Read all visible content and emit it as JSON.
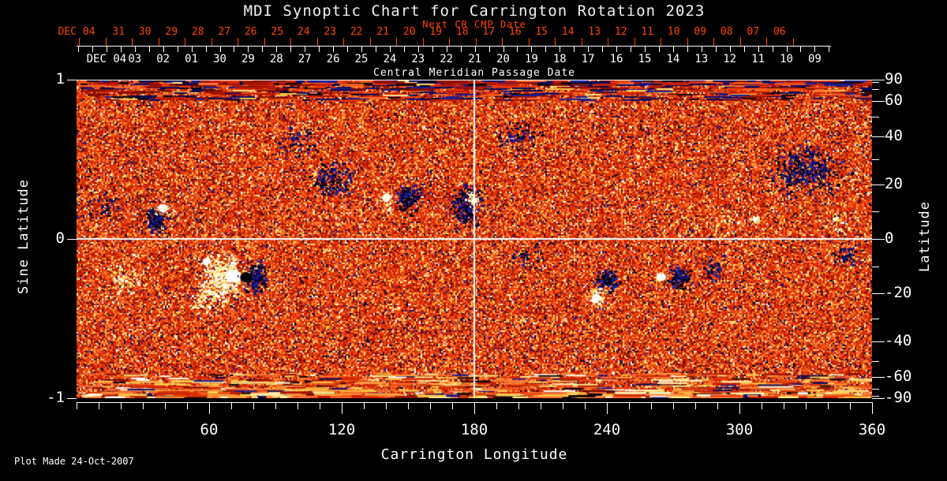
{
  "title": "MDI Synoptic Chart for Carrington Rotation 2023",
  "footer": "Plot Made 24-Oct-2007",
  "colors": {
    "background": "#000000",
    "foreground": "#ffffff",
    "accent_red": "#ff4400",
    "map_base_red": "#dd3300",
    "negative_polarity": "#101070",
    "positive_polarity": "#ffffff"
  },
  "top_axis": {
    "label": "Next CR CMP Date",
    "month_label": "DEC 04",
    "day_labels": [
      "31",
      "30",
      "29",
      "28",
      "27",
      "26",
      "25",
      "24",
      "23",
      "22",
      "21",
      "20",
      "19",
      "18",
      "17",
      "16",
      "15",
      "14",
      "13",
      "12",
      "11",
      "10",
      "09",
      "08",
      "07",
      "06"
    ]
  },
  "cmp_axis": {
    "label": "Central Meridian Passage Date",
    "month_label": "DEC 04",
    "day_labels": [
      "03",
      "02",
      "01",
      "30",
      "29",
      "28",
      "27",
      "26",
      "25",
      "24",
      "23",
      "22",
      "21",
      "20",
      "19",
      "18",
      "17",
      "16",
      "15",
      "14",
      "13",
      "12",
      "11",
      "10",
      "09"
    ]
  },
  "left_axis": {
    "label": "Sine Latitude",
    "tick_labels": [
      "1",
      "0",
      "-1"
    ],
    "tick_values": [
      1,
      0,
      -1
    ]
  },
  "right_axis": {
    "label": "Latitude",
    "tick_labels": [
      "90",
      "60",
      "40",
      "20",
      "0",
      "-20",
      "-40",
      "-60",
      "-90"
    ],
    "tick_values": [
      90,
      60,
      40,
      20,
      0,
      -20,
      -40,
      -60,
      -90
    ],
    "minor_step_deg": 10
  },
  "bottom_axis": {
    "label": "Carrington Longitude",
    "tick_labels": [
      "60",
      "120",
      "180",
      "240",
      "300",
      "360"
    ],
    "tick_values": [
      60,
      120,
      180,
      240,
      300,
      360
    ],
    "minor_step_deg": 10
  },
  "chart_data": {
    "type": "heatmap",
    "title": "MDI Synoptic Chart for Carrington Rotation 2023",
    "xlabel": "Carrington Longitude",
    "xlim": [
      0,
      360
    ],
    "ylabel": "Sine Latitude",
    "ylim": [
      -1,
      1
    ],
    "y2label": "Latitude",
    "y2lim": [
      -90,
      90
    ],
    "grid": {
      "vertical_line_lon": 180,
      "horizontal_line_lat": 0
    },
    "description": "Solar magnetic field synoptic map: red/orange speckled background noise, dark navy/black patches are negative polarity flux, white/yellow patches are positive polarity flux; horizontally smeared noise bands at both poles",
    "active_regions": [
      {
        "lon": 36,
        "lat": 7,
        "dlon": 7,
        "dlat": 8,
        "polarity": "negative",
        "density": "dense"
      },
      {
        "lon": 12,
        "lat": 11,
        "dlon": 12,
        "dlat": 8,
        "polarity": "negative",
        "density": "sparse"
      },
      {
        "lon": 22,
        "lat": -15,
        "dlon": 16,
        "dlat": 13,
        "polarity": "positive",
        "density": "sparse"
      },
      {
        "lon": 66,
        "lat": -14,
        "dlon": 13,
        "dlat": 13,
        "polarity": "positive",
        "density": "dense"
      },
      {
        "lon": 58,
        "lat": -22,
        "dlon": 9,
        "dlat": 8,
        "polarity": "positive",
        "density": "medium"
      },
      {
        "lon": 81,
        "lat": -14,
        "dlon": 8,
        "dlat": 8,
        "polarity": "negative",
        "density": "dense"
      },
      {
        "lon": 115,
        "lat": 22,
        "dlon": 16,
        "dlat": 11,
        "polarity": "negative",
        "density": "medium"
      },
      {
        "lon": 100,
        "lat": 38,
        "dlon": 14,
        "dlat": 11,
        "polarity": "negative",
        "density": "sparse"
      },
      {
        "lon": 150,
        "lat": 15,
        "dlon": 8,
        "dlat": 8,
        "polarity": "negative",
        "density": "dense"
      },
      {
        "lon": 140,
        "lat": 11,
        "dlon": 5,
        "dlat": 6,
        "polarity": "positive",
        "density": "sparse"
      },
      {
        "lon": 176,
        "lat": 12,
        "dlon": 10,
        "dlat": 11,
        "polarity": "negative",
        "density": "dense"
      },
      {
        "lon": 178,
        "lat": 15,
        "dlon": 4,
        "dlat": 5,
        "polarity": "positive",
        "density": "medium"
      },
      {
        "lon": 203,
        "lat": -6,
        "dlon": 12,
        "dlat": 7,
        "polarity": "negative",
        "density": "sparse"
      },
      {
        "lon": 200,
        "lat": 40,
        "dlon": 18,
        "dlat": 12,
        "polarity": "negative",
        "density": "sparse"
      },
      {
        "lon": 240,
        "lat": -15,
        "dlon": 8,
        "dlat": 7,
        "polarity": "negative",
        "density": "dense"
      },
      {
        "lon": 236,
        "lat": -20,
        "dlon": 6,
        "dlat": 6,
        "polarity": "positive",
        "density": "medium"
      },
      {
        "lon": 273,
        "lat": -14,
        "dlon": 8,
        "dlat": 7,
        "polarity": "negative",
        "density": "dense"
      },
      {
        "lon": 288,
        "lat": -11,
        "dlon": 8,
        "dlat": 7,
        "polarity": "negative",
        "density": "medium"
      },
      {
        "lon": 330,
        "lat": 26,
        "dlon": 24,
        "dlat": 16,
        "polarity": "negative",
        "density": "medium"
      },
      {
        "lon": 293,
        "lat": 5,
        "dlon": 9,
        "dlat": 6,
        "polarity": "positive",
        "density": "sparse"
      },
      {
        "lon": 345,
        "lat": 6,
        "dlon": 11,
        "dlat": 6,
        "polarity": "positive",
        "density": "sparse"
      },
      {
        "lon": 348,
        "lat": -6,
        "dlon": 9,
        "dlat": 6,
        "polarity": "negative",
        "density": "medium"
      }
    ],
    "bright_cores": [
      {
        "lon": 39,
        "lat": 11,
        "r": 5,
        "polarity": "positive"
      },
      {
        "lon": 71,
        "lat": -13,
        "r": 7,
        "polarity": "positive"
      },
      {
        "lon": 59,
        "lat": -8,
        "r": 4,
        "polarity": "positive"
      },
      {
        "lon": 77,
        "lat": -14,
        "r": 6,
        "polarity": "negative"
      },
      {
        "lon": 140,
        "lat": 15,
        "r": 5,
        "polarity": "positive"
      },
      {
        "lon": 235,
        "lat": -22,
        "r": 5,
        "polarity": "positive"
      },
      {
        "lon": 265,
        "lat": -14,
        "r": 5,
        "polarity": "positive"
      },
      {
        "lon": 180,
        "lat": 14,
        "r": 3,
        "polarity": "positive"
      },
      {
        "lon": 307,
        "lat": 7,
        "r": 3,
        "polarity": "positive"
      }
    ],
    "map_palette": {
      "reds": [
        "#c81e00",
        "#d22a04",
        "#e03508",
        "#ea430e",
        "#f04f14",
        "#bf1800"
      ],
      "dark_reds": [
        "#8f1000",
        "#7a0c00",
        "#a01400"
      ],
      "oranges": [
        "#f9662c",
        "#ff7434",
        "#ef5a1a"
      ],
      "ambers": [
        "#ff9a3e",
        "#ff8536"
      ],
      "yellows": [
        "#ffd051",
        "#ffc242",
        "#f6e488"
      ],
      "navies": [
        "#0e0e6e",
        "#0a0a50",
        "#1d1d8e"
      ],
      "darks": [
        "#1a0800",
        "#000016"
      ],
      "whites": [
        "#fff8e0",
        "#ffffff",
        "#ffedb2"
      ],
      "pos_dots": [
        "#ffffff",
        "#fff6d8",
        "#ffe794",
        "#ffd658"
      ],
      "neg_dots": [
        "#000030",
        "#0b0b58",
        "#161685",
        "#000000",
        "#22229a"
      ]
    }
  }
}
